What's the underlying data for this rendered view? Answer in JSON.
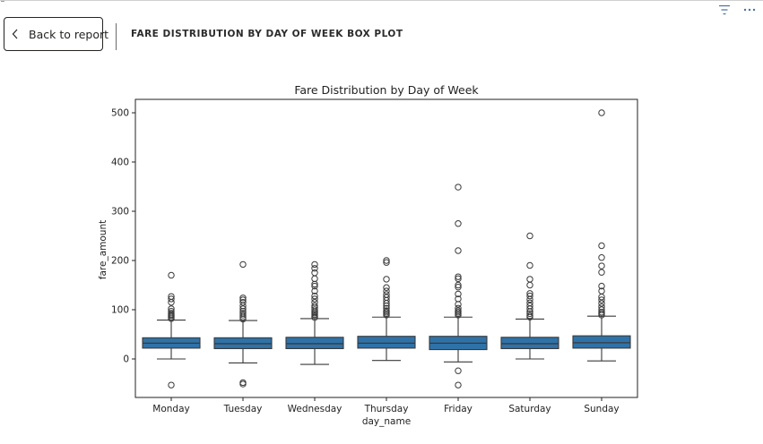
{
  "header": {
    "back_label": "Back to report",
    "title": "FARE DISTRIBUTION BY DAY OF WEEK BOX PLOT"
  },
  "icons": {
    "filter": "filter-lines-icon",
    "more": "more-options-icon",
    "back": "chevron-left-icon"
  },
  "colors": {
    "box_fill": "#2f72a8",
    "line": "#3a3a3a"
  },
  "chart_data": {
    "type": "box",
    "title": "Fare Distribution by Day of Week",
    "xlabel": "day_name",
    "ylabel": "fare_amount",
    "ylim": [
      -80,
      520
    ],
    "yticks": [
      0,
      100,
      200,
      300,
      400,
      500
    ],
    "categories": [
      "Monday",
      "Tuesday",
      "Wednesday",
      "Thursday",
      "Friday",
      "Saturday",
      "Sunday"
    ],
    "boxes": [
      {
        "whisker_low": 0,
        "q1": 22,
        "median": 32,
        "q3": 43,
        "whisker_high": 79,
        "outliers": [
          -53,
          82,
          85,
          88,
          90,
          93,
          97,
          102,
          115,
          122,
          127,
          170
        ]
      },
      {
        "whisker_low": -8,
        "q1": 21,
        "median": 31,
        "q3": 43,
        "whisker_high": 78,
        "outliers": [
          -51,
          -48,
          81,
          85,
          89,
          93,
          97,
          102,
          108,
          115,
          120,
          124,
          192
        ]
      },
      {
        "whisker_low": -11,
        "q1": 21,
        "median": 31,
        "q3": 44,
        "whisker_high": 82,
        "outliers": [
          84,
          87,
          90,
          93,
          96,
          100,
          104,
          108,
          115,
          122,
          128,
          138,
          148,
          152,
          163,
          175,
          184,
          192
        ]
      },
      {
        "whisker_low": -3,
        "q1": 22,
        "median": 32,
        "q3": 46,
        "whisker_high": 85,
        "outliers": [
          89,
          92,
          95,
          98,
          103,
          108,
          113,
          119,
          125,
          131,
          138,
          145,
          162,
          196,
          200
        ]
      },
      {
        "whisker_low": -6,
        "q1": 19,
        "median": 32,
        "q3": 46,
        "whisker_high": 85,
        "outliers": [
          -53,
          -24,
          89,
          92,
          95,
          98,
          103,
          111,
          122,
          132,
          146,
          150,
          163,
          167,
          220,
          275,
          349
        ]
      },
      {
        "whisker_low": 0,
        "q1": 21,
        "median": 31,
        "q3": 44,
        "whisker_high": 81,
        "outliers": [
          85,
          88,
          92,
          96,
          102,
          108,
          114,
          121,
          128,
          133,
          150,
          162,
          190,
          250
        ]
      },
      {
        "whisker_low": -4,
        "q1": 22,
        "median": 33,
        "q3": 47,
        "whisker_high": 87,
        "outliers": [
          89,
          92,
          95,
          100,
          106,
          113,
          120,
          126,
          138,
          148,
          176,
          189,
          206,
          230,
          500
        ]
      }
    ]
  }
}
